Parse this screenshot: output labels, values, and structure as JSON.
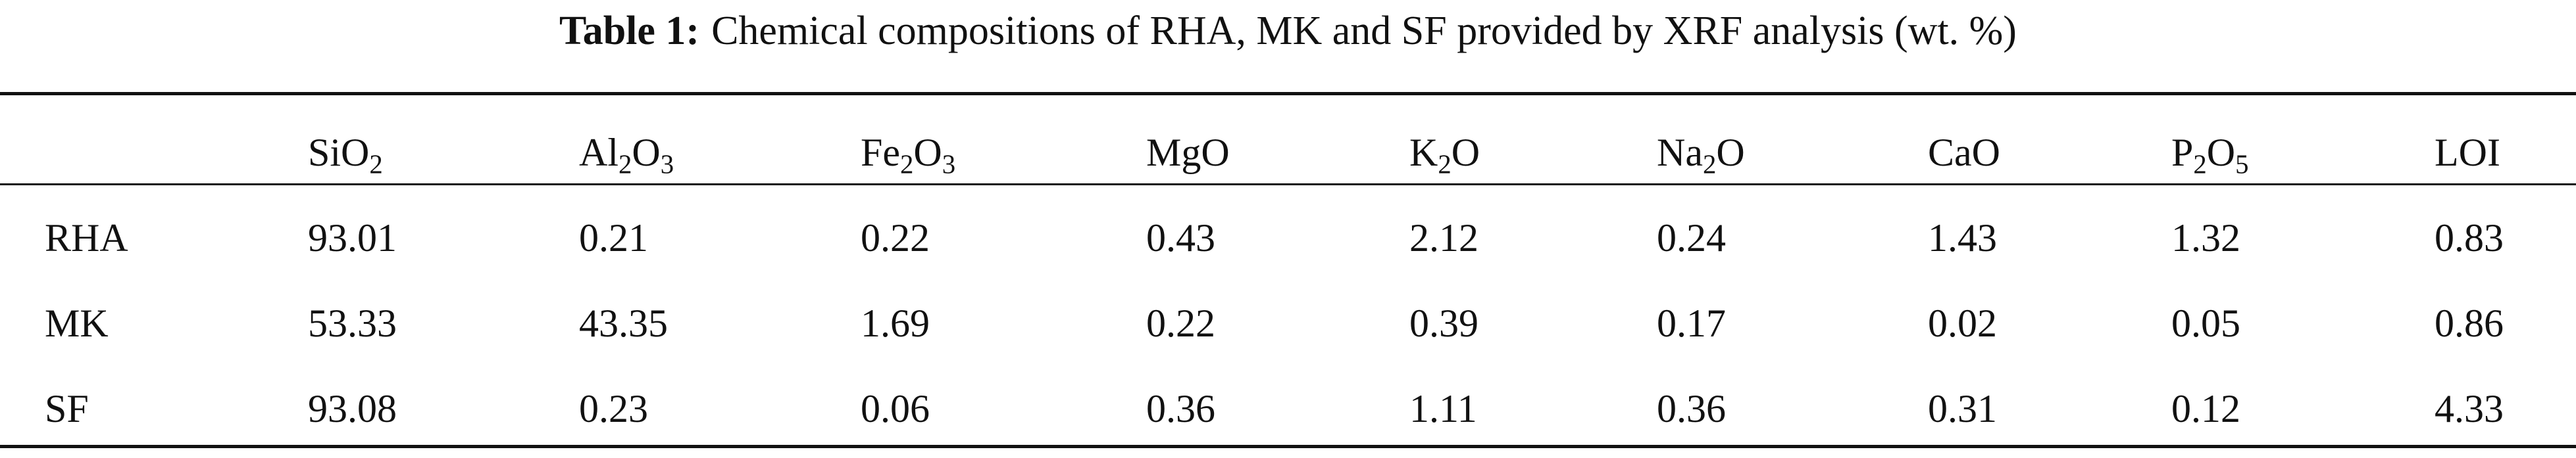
{
  "table": {
    "caption": {
      "label": "Table 1:",
      "text": "Chemical compositions of RHA, MK and SF provided by XRF analysis (wt. %)"
    },
    "columns": [
      [
        "SiO",
        "2"
      ],
      [
        "Al",
        "2",
        "O",
        "3"
      ],
      [
        "Fe",
        "2",
        "O",
        "3"
      ],
      [
        "MgO"
      ],
      [
        "K",
        "2",
        "O"
      ],
      [
        "Na",
        "2",
        "O"
      ],
      [
        "CaO"
      ],
      [
        "P",
        "2",
        "O",
        "5"
      ],
      [
        "LOI"
      ]
    ],
    "rows": [
      [
        "RHA",
        "93.01",
        "0.21",
        "0.22",
        "0.43",
        "2.12",
        "0.24",
        "1.43",
        "1.32",
        "0.83"
      ],
      [
        "MK",
        "53.33",
        "43.35",
        "1.69",
        "0.22",
        "0.39",
        "0.17",
        "0.02",
        "0.05",
        "0.86"
      ],
      [
        "SF",
        "93.08",
        "0.23",
        "0.06",
        "0.36",
        "1.11",
        "0.36",
        "0.31",
        "0.12",
        "4.33"
      ]
    ]
  }
}
